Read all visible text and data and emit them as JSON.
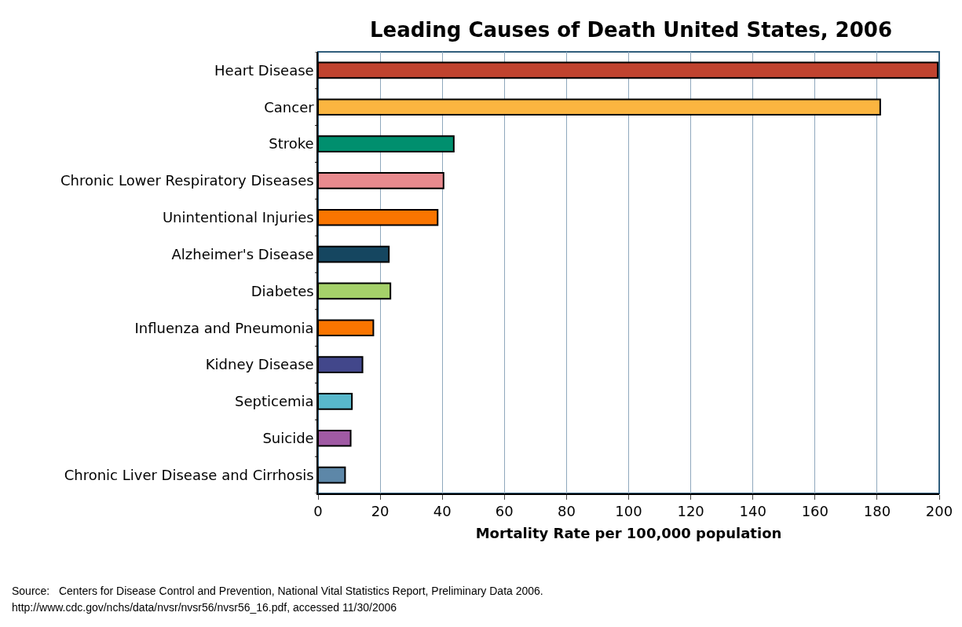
{
  "chart_data": {
    "type": "bar",
    "orientation": "horizontal",
    "title": "Leading Causes of Death United States, 2006",
    "xlabel": "Mortality Rate per 100,000 population",
    "categories": [
      "Heart Disease",
      "Cancer",
      "Stroke",
      "Chronic Lower Respiratory Diseases",
      "Unintentional Injuries",
      "Alzheimer's Disease",
      "Diabetes",
      "Influenza and Pneumonia",
      "Kidney Disease",
      "Septicemia",
      "Suicide",
      "Chronic Liver Disease and Cirrhosis"
    ],
    "values": [
      199.5,
      181,
      43.7,
      40.4,
      38.5,
      22.8,
      23.3,
      17.8,
      14.3,
      10.9,
      10.5,
      8.7
    ],
    "colors": [
      "#c0432f",
      "#fbb540",
      "#008f6e",
      "#e88a8e",
      "#fa7500",
      "#154660",
      "#a5d16a",
      "#fa7500",
      "#42478b",
      "#58b8cb",
      "#a05aa4",
      "#5d87a8"
    ],
    "xlim": [
      0,
      200
    ],
    "xticks": [
      0,
      20,
      40,
      60,
      80,
      100,
      120,
      140,
      160,
      180,
      200
    ],
    "grid": "x",
    "legend": false,
    "annotations": [
      "Source:   Centers for Disease Control and Prevention, National Vital Statistics Report, Preliminary Data 2006.",
      "http://www.cdc.gov/nchs/data/nvsr/nvsr56/nvsr56_16.pdf, accessed 11/30/2006"
    ]
  }
}
